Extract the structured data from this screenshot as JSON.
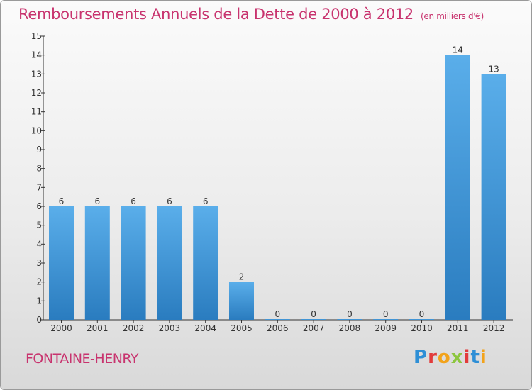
{
  "header": {
    "title": "Remboursements Annuels de la Dette de 2000 à 2012",
    "unit": "(en milliers d'€)"
  },
  "footer": {
    "city": "FONTAINE-HENRY",
    "brand": "Proxiti",
    "brand_colors": [
      "#2e8fd6",
      "#e23b3b",
      "#f2a31b",
      "#8cc63f",
      "#e23b3b",
      "#2e8fd6",
      "#f2a31b"
    ]
  },
  "colors": {
    "title": "#c8336e",
    "bar_top": "#5aaeea",
    "bar_bottom": "#2a7cbf",
    "axis": "#333333"
  },
  "chart_data": {
    "type": "bar",
    "title": "Remboursements Annuels de la Dette de 2000 à 2012",
    "categories": [
      "2000",
      "2001",
      "2002",
      "2003",
      "2004",
      "2005",
      "2006",
      "2007",
      "2008",
      "2009",
      "2010",
      "2011",
      "2012"
    ],
    "values": [
      6,
      6,
      6,
      6,
      6,
      2,
      0,
      0,
      0,
      0,
      0,
      14,
      13
    ],
    "ylim": [
      0,
      15
    ],
    "yticks": [
      0,
      1,
      2,
      3,
      4,
      5,
      6,
      7,
      8,
      9,
      10,
      11,
      12,
      13,
      14,
      15
    ],
    "grid": false,
    "legend": "none"
  }
}
